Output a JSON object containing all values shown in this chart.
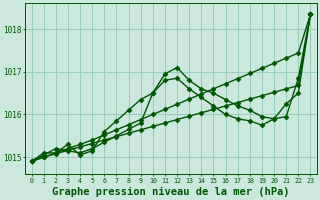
{
  "bg_color": "#cce8dd",
  "grid_color": "#99ccbb",
  "line_color": "#005500",
  "marker": "D",
  "markersize": 2.5,
  "linewidth": 1.0,
  "title": "Graphe pression niveau de la mer (hPa)",
  "title_fontsize": 7.5,
  "ylim": [
    1014.6,
    1018.6
  ],
  "xlim": [
    -0.5,
    23.5
  ],
  "yticks": [
    1015,
    1016,
    1017,
    1018
  ],
  "xticks": [
    0,
    1,
    2,
    3,
    4,
    5,
    6,
    7,
    8,
    9,
    10,
    11,
    12,
    13,
    14,
    15,
    16,
    17,
    18,
    19,
    20,
    21,
    22,
    23
  ],
  "s1_x": [
    0,
    1,
    2,
    3,
    4,
    5,
    6,
    7,
    8,
    9,
    10,
    11,
    12,
    13,
    14,
    15,
    16,
    17,
    18,
    19,
    20,
    21,
    22,
    23
  ],
  "s1_y": [
    1014.9,
    1015.1,
    1015.1,
    1015.3,
    1015.05,
    1015.15,
    1015.6,
    1015.85,
    1016.1,
    1016.35,
    1016.5,
    1016.95,
    1017.1,
    1016.8,
    1016.6,
    1016.5,
    1016.35,
    1016.2,
    1016.1,
    1015.95,
    1015.9,
    1015.95,
    1016.85,
    1018.35
  ],
  "s2_x": [
    0,
    1,
    2,
    3,
    4,
    5,
    6,
    7,
    8,
    9,
    10,
    11,
    12,
    13,
    14,
    15,
    16,
    17,
    18,
    19,
    20,
    21,
    22,
    23
  ],
  "s2_y": [
    1014.9,
    1015.05,
    1015.2,
    1015.15,
    1015.1,
    1015.2,
    1015.35,
    1015.5,
    1015.65,
    1015.8,
    1016.5,
    1016.8,
    1016.85,
    1016.6,
    1016.4,
    1016.2,
    1016.0,
    1015.9,
    1015.85,
    1015.75,
    1015.9,
    1016.25,
    1016.5,
    1018.35
  ],
  "s3_x": [
    0,
    1,
    2,
    3,
    4,
    5,
    6,
    7,
    8,
    9,
    10,
    11,
    12,
    13,
    14,
    15,
    16,
    17,
    18,
    19,
    20,
    21,
    22,
    23
  ],
  "s3_y": [
    1014.9,
    1015.0,
    1015.1,
    1015.2,
    1015.3,
    1015.4,
    1015.52,
    1015.64,
    1015.76,
    1015.88,
    1016.0,
    1016.12,
    1016.24,
    1016.36,
    1016.48,
    1016.6,
    1016.72,
    1016.84,
    1016.96,
    1017.08,
    1017.2,
    1017.32,
    1017.44,
    1018.35
  ],
  "s4_x": [
    0,
    1,
    2,
    3,
    4,
    5,
    6,
    7,
    8,
    9,
    10,
    11,
    12,
    13,
    14,
    15,
    16,
    17,
    18,
    19,
    20,
    21,
    22,
    23
  ],
  "s4_y": [
    1014.9,
    1015.0,
    1015.08,
    1015.16,
    1015.24,
    1015.32,
    1015.4,
    1015.48,
    1015.56,
    1015.64,
    1015.72,
    1015.8,
    1015.88,
    1015.96,
    1016.04,
    1016.12,
    1016.2,
    1016.28,
    1016.36,
    1016.44,
    1016.52,
    1016.6,
    1016.68,
    1018.35
  ]
}
